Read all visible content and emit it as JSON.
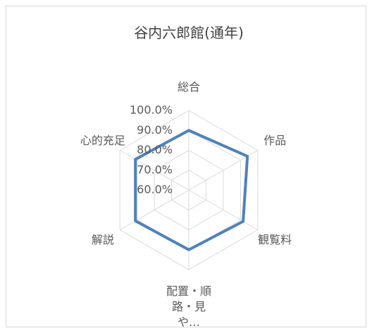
{
  "chart_data": {
    "type": "radar",
    "title": "谷内六郎館(通年)",
    "categories": [
      "総合",
      "作品",
      "観覧料",
      "配置・順路・見や…",
      "解説",
      "心的充足"
    ],
    "series": [
      {
        "name": "谷内六郎館(通年)",
        "color": "#4f81bd",
        "values": [
          90,
          94,
          91.5,
          90,
          91,
          91
        ]
      }
    ],
    "rlim": [
      60,
      100
    ],
    "rticks": [
      {
        "value": 60,
        "label": "60.0%"
      },
      {
        "value": 70,
        "label": "70.0%"
      },
      {
        "value": 80,
        "label": "80.0%"
      },
      {
        "value": 90,
        "label": "90.0%"
      },
      {
        "value": 100,
        "label": "100.0%"
      }
    ],
    "grid": true
  }
}
